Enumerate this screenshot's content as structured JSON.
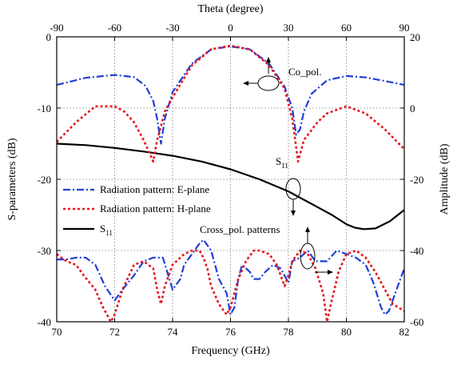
{
  "chart_data": {
    "type": "line",
    "xlabel": "Frequency (GHz)",
    "ylabel": "S-parameters (dB)",
    "x_top_label": "Theta (degree)",
    "y_right_label": "Amplitude (dB)",
    "xlim": [
      70,
      82
    ],
    "ylim": [
      -40,
      0
    ],
    "x_top_lim": [
      -90,
      90
    ],
    "y_right_lim": [
      -60,
      20
    ],
    "x_ticks": [
      70,
      72,
      74,
      76,
      78,
      80,
      82
    ],
    "y_ticks": [
      0,
      -10,
      -20,
      -30,
      -40
    ],
    "x_top_ticks": [
      -90,
      -60,
      -30,
      0,
      30,
      60,
      90
    ],
    "y_right_ticks": [
      20,
      0,
      -20,
      -40,
      -60
    ],
    "grid": true,
    "legend": {
      "placement": "middle-left",
      "entries": [
        {
          "label": "Radiation pattern: E-plane",
          "color": "#1f3fd6",
          "dash": "dashdot"
        },
        {
          "label": "Radiation pattern: H-plane",
          "color": "#e8141e",
          "dash": "dotted"
        },
        {
          "label": "S",
          "sub": "11",
          "color": "#000000",
          "dash": "solid"
        }
      ]
    },
    "annotations": {
      "co_pol": "Co_pol.",
      "s11": "S",
      "s11_sub": "11",
      "cross_pol": "Cross_pol. patterns"
    },
    "series": [
      {
        "name": "S11",
        "axis": "bottom-left",
        "color": "#000000",
        "dash": "solid",
        "x": [
          70,
          71,
          72,
          73,
          74,
          75,
          76,
          77,
          78,
          79,
          79.5,
          80,
          80.3,
          80.6,
          81,
          81.5,
          82
        ],
        "y": [
          -15,
          -15.2,
          -15.6,
          -16.1,
          -16.7,
          -17.5,
          -18.6,
          -20.0,
          -21.7,
          -23.9,
          -25.0,
          -26.3,
          -26.8,
          -27.0,
          -26.9,
          -25.9,
          -24.3
        ]
      },
      {
        "name": "Radiation pattern: E-plane",
        "axis": "top-right",
        "color": "#1f3fd6",
        "dash": "dashdot",
        "x": [
          -90,
          -75,
          -60,
          -50,
          -44,
          -40,
          -38,
          -36,
          -34,
          -30,
          -20,
          -10,
          0,
          10,
          20,
          28,
          32,
          34,
          36,
          38,
          42,
          50,
          60,
          70,
          80,
          90
        ],
        "y": [
          6.5,
          8.5,
          9.3,
          8.7,
          6.2,
          2,
          -3,
          -10,
          -3,
          4.5,
          12.5,
          16.5,
          17.3,
          16.5,
          12.5,
          6,
          0,
          -7.5,
          -6,
          -1,
          4,
          7.8,
          9,
          8.6,
          7.6,
          6.5
        ]
      },
      {
        "name": "Radiation pattern: H-plane",
        "axis": "top-right",
        "color": "#e8141e",
        "dash": "dotted",
        "x": [
          -90,
          -80,
          -70,
          -60,
          -55,
          -50,
          -45,
          -40,
          -38,
          -36,
          -34,
          -30,
          -20,
          -10,
          0,
          10,
          20,
          28,
          32,
          35,
          38,
          45,
          50,
          60,
          70,
          80,
          90
        ],
        "y": [
          -9.5,
          -4,
          0.5,
          0.5,
          -1,
          -4,
          -9,
          -15,
          -9,
          -5,
          -1,
          3,
          12,
          16.5,
          17.5,
          16.5,
          12,
          5.5,
          -3,
          -15,
          -9,
          -4,
          -1.5,
          0.5,
          -1.5,
          -6,
          -11.5
        ]
      },
      {
        "name": "Cross_pol. E-plane",
        "axis": "top-right",
        "color": "#1f3fd6",
        "dash": "dashdot",
        "x": [
          -90,
          -85,
          -80,
          -75,
          -70,
          -65,
          -60,
          -56,
          -50,
          -45,
          -40,
          -35,
          -30,
          -26,
          -24,
          -20,
          -16,
          -14,
          -12,
          -10,
          -6,
          -2,
          0,
          2,
          4,
          6,
          10,
          12,
          15,
          18,
          22,
          26,
          30,
          32,
          36,
          40,
          44,
          50,
          55,
          60,
          65,
          70,
          74,
          78,
          80,
          82,
          86,
          90
        ],
        "y": [
          -42.5,
          -42.5,
          -42,
          -42,
          -44,
          -50,
          -54,
          -51,
          -47,
          -43,
          -42,
          -42,
          -51,
          -48,
          -44,
          -41,
          -38,
          -37,
          -38.5,
          -40,
          -48,
          -52,
          -58,
          -56,
          -48,
          -44,
          -46,
          -48,
          -48,
          -46,
          -44,
          -45,
          -49,
          -43,
          -42,
          -40,
          -43,
          -43,
          -40,
          -41,
          -42,
          -44,
          -49,
          -56,
          -58,
          -57,
          -51,
          -45
        ]
      },
      {
        "name": "Cross_pol. H-plane",
        "axis": "top-right",
        "color": "#e8141e",
        "dash": "dotted",
        "x": [
          -90,
          -85,
          -80,
          -76,
          -70,
          -66,
          -62,
          -60,
          -56,
          -50,
          -45,
          -40,
          -38,
          -36,
          -34,
          -30,
          -24,
          -20,
          -16,
          -14,
          -12,
          -10,
          -6,
          -2,
          0,
          4,
          8,
          12,
          15,
          20,
          24,
          26,
          28,
          30,
          32,
          36,
          40,
          44,
          48,
          50,
          52,
          56,
          60,
          65,
          70,
          75,
          80,
          84,
          90
        ],
        "y": [
          -41,
          -43,
          -44,
          -47,
          -51,
          -56,
          -60,
          -58,
          -51,
          -44,
          -43,
          -45,
          -51,
          -55,
          -50,
          -44,
          -41,
          -40,
          -40,
          -42,
          -45,
          -50,
          -55,
          -58,
          -56,
          -48,
          -43,
          -40,
          -40,
          -41,
          -44,
          -47,
          -50,
          -47,
          -43,
          -40,
          -41,
          -45,
          -52,
          -60,
          -55,
          -46,
          -41,
          -40,
          -42,
          -46,
          -51,
          -55,
          -57
        ]
      }
    ]
  }
}
